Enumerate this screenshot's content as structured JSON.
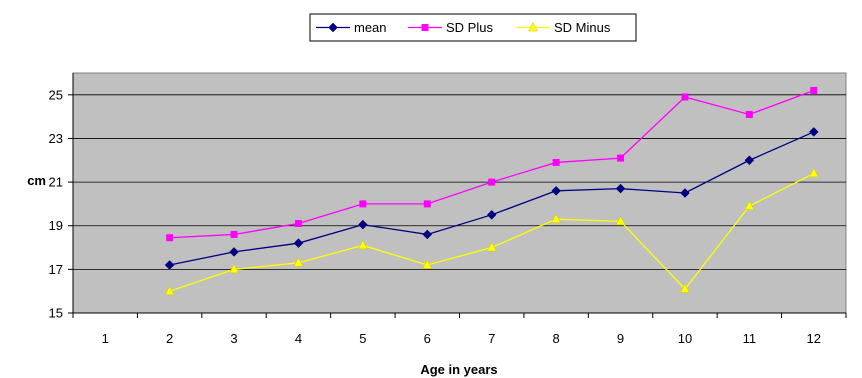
{
  "chart_data": {
    "type": "line",
    "title": "",
    "xlabel": "Age in years",
    "ylabel": "cm",
    "categories": [
      "1",
      "2",
      "3",
      "4",
      "5",
      "6",
      "7",
      "8",
      "9",
      "10",
      "11",
      "12"
    ],
    "ylim": [
      15,
      26
    ],
    "yticks": [
      15,
      17,
      19,
      21,
      23,
      25
    ],
    "grid": true,
    "legend_position": "top",
    "plot_background": "#c0c0c0",
    "series": [
      {
        "name": "mean",
        "color": "#000080",
        "marker": "diamond",
        "values": [
          null,
          17.2,
          17.8,
          18.2,
          19.05,
          18.6,
          19.5,
          20.6,
          20.7,
          20.5,
          22.0,
          23.3
        ]
      },
      {
        "name": "SD Plus",
        "color": "#ff00ff",
        "marker": "square",
        "values": [
          null,
          18.45,
          18.6,
          19.1,
          20.0,
          20.0,
          21.0,
          21.9,
          22.1,
          24.9,
          24.1,
          25.2
        ]
      },
      {
        "name": "SD Minus",
        "color": "#ffff00",
        "marker": "triangle",
        "values": [
          null,
          16.0,
          17.0,
          17.3,
          18.1,
          17.2,
          18.0,
          19.3,
          19.2,
          16.1,
          19.9,
          21.4
        ]
      }
    ]
  }
}
